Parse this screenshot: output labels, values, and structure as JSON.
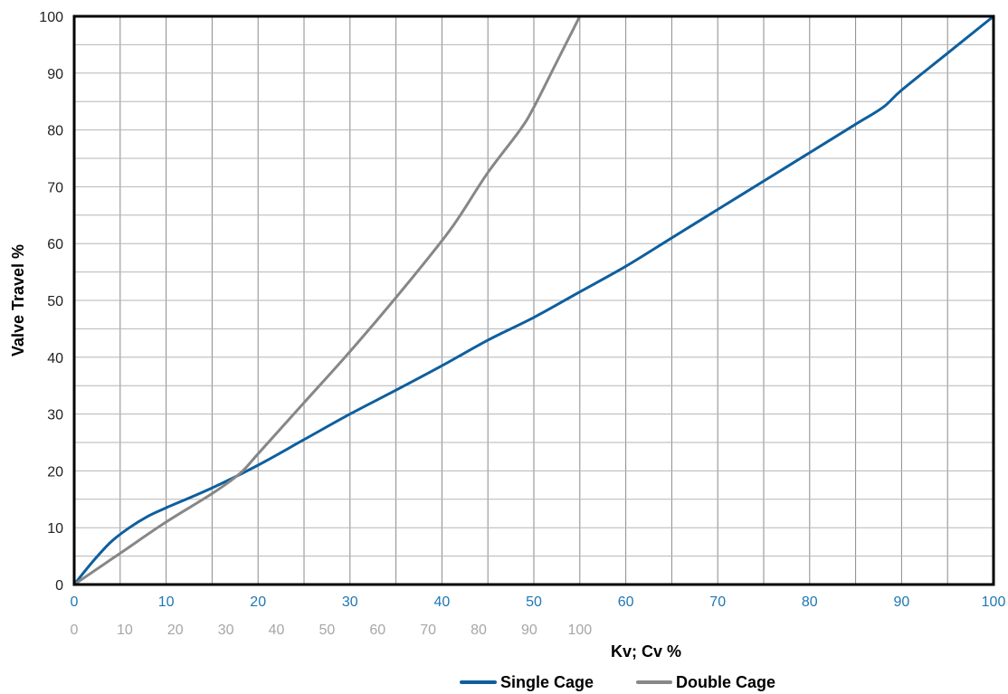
{
  "chart_data": {
    "type": "line",
    "ylabel": "Valve Travel %",
    "xlabel": "Kv; Cv %",
    "xlim": [
      0,
      100
    ],
    "ylim": [
      0,
      100
    ],
    "grid": true,
    "legend_position": "bottom-center",
    "yticks": [
      "0",
      "10",
      "20",
      "30",
      "40",
      "50",
      "60",
      "70",
      "80",
      "90",
      "100"
    ],
    "xticks_primary": [
      "0",
      "10",
      "20",
      "30",
      "40",
      "50",
      "60",
      "70",
      "80",
      "90",
      "100"
    ],
    "xticks_secondary": [
      "0",
      "10",
      "20",
      "30",
      "40",
      "50",
      "60",
      "70",
      "80",
      "90",
      "100"
    ],
    "xticks_secondary_scale": 55,
    "xticks_primary_color": "#1f77b4",
    "xticks_secondary_color": "#a6a6a6",
    "series": [
      {
        "name": "Single Cage",
        "color": "#0e5f9e",
        "x": [
          0,
          2,
          4,
          6,
          8,
          10,
          15,
          20,
          25,
          30,
          35,
          40,
          45,
          50,
          55,
          60,
          65,
          70,
          75,
          80,
          85,
          88,
          90,
          95,
          100
        ],
        "y": [
          0,
          4,
          7.5,
          10,
          12,
          13.5,
          17,
          21,
          25.5,
          30,
          34.2,
          38.5,
          43,
          47,
          51.5,
          56,
          61,
          66,
          71,
          76,
          81,
          84,
          87,
          93.5,
          100
        ]
      },
      {
        "name": "Double Cage",
        "color": "#878787",
        "x": [
          0,
          5,
          10,
          15,
          18,
          20,
          25,
          30,
          35,
          40,
          42,
          45,
          48.5,
          50,
          52.5,
          55
        ],
        "y": [
          0,
          5.5,
          11,
          16,
          19.5,
          23,
          32,
          41,
          50.5,
          60.5,
          65,
          72.5,
          80,
          84,
          92,
          100
        ]
      }
    ]
  }
}
